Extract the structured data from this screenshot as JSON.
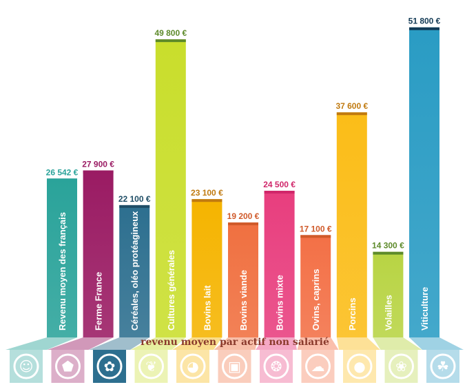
{
  "chart_data": {
    "type": "bar",
    "caption": "revenu moyen par actif non salarié",
    "ylim": [
      0,
      52000
    ],
    "bars": [
      {
        "category": "Revenu moyen des français",
        "value": 26542,
        "value_label": "26 542 €",
        "color": "#2aa39a",
        "label_color": "#2aa39a",
        "icon": "person-icon"
      },
      {
        "category": "Ferme France",
        "value": 27900,
        "value_label": "27 900 €",
        "color": "#9a1b63",
        "label_color": "#9a1b63",
        "icon": "france-map-icon"
      },
      {
        "category": "Céréales, oléo protéagineux",
        "value": 22100,
        "value_label": "22 100 €",
        "color": "#2d6f8f",
        "label_color": "#1f4e66",
        "icon": "sunflower-icon"
      },
      {
        "category": "Cultures générales",
        "value": 49800,
        "value_label": "49 800 €",
        "color": "#c9de2c",
        "label_color": "#5d8a2a",
        "icon": "leaf-icon"
      },
      {
        "category": "Bovins lait",
        "value": 23100,
        "value_label": "23 100 €",
        "color": "#f5b400",
        "label_color": "#c07a10",
        "icon": "cow-icon"
      },
      {
        "category": "Bovins viande",
        "value": 19200,
        "value_label": "19 200 €",
        "color": "#f07040",
        "label_color": "#d05a2a",
        "icon": "cattle-icon"
      },
      {
        "category": "Bovins mixte",
        "value": 24500,
        "value_label": "24 500 €",
        "color": "#e83e7e",
        "label_color": "#d0266a",
        "icon": "bull-icon"
      },
      {
        "category": "Ovins, caprins",
        "value": 17100,
        "value_label": "17 100 €",
        "color": "#f37046",
        "label_color": "#d05a2a",
        "icon": "sheep-icon"
      },
      {
        "category": "Porcins",
        "value": 37600,
        "value_label": "37 600 €",
        "color": "#fbbd18",
        "label_color": "#c07a10",
        "icon": "pig-icon"
      },
      {
        "category": "Volailles",
        "value": 14300,
        "value_label": "14 300 €",
        "color": "#b8d443",
        "label_color": "#5d8a2a",
        "icon": "chicken-icon"
      },
      {
        "category": "Viticulture",
        "value": 51800,
        "value_label": "51 800 €",
        "color": "#2a9cc4",
        "label_color": "#123a55",
        "icon": "grape-leaf-icon"
      }
    ]
  }
}
